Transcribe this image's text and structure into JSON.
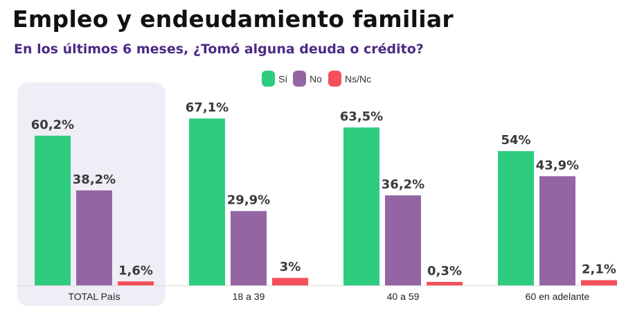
{
  "header": {
    "title": "Empleo y endeudamiento familiar",
    "subtitle": "En los últimos 6 meses, ¿Tomó alguna deuda o crédito?"
  },
  "chart_data": {
    "type": "bar",
    "title": "Empleo y endeudamiento familiar",
    "subtitle": "En los últimos 6 meses, ¿Tomó alguna deuda o crédito?",
    "categories": [
      "TOTAL País",
      "18 a 39",
      "40 a 59",
      "60 en adelante"
    ],
    "series": [
      {
        "name": "Sí",
        "color": "#2ecc7e",
        "values": [
          60.2,
          67.1,
          63.5,
          54
        ],
        "labels": [
          "60,2%",
          "67,1%",
          "63,5%",
          "54%"
        ]
      },
      {
        "name": "No",
        "color": "#9366a3",
        "values": [
          38.2,
          29.9,
          36.2,
          43.9
        ],
        "labels": [
          "38,2%",
          "29,9%",
          "36,2%",
          "43,9%"
        ]
      },
      {
        "name": "Ns/Nc",
        "color": "#f4505a",
        "values": [
          1.6,
          3,
          0.3,
          2.1
        ],
        "labels": [
          "1,6%",
          "3%",
          "0,3%",
          "2,1%"
        ]
      }
    ],
    "legend_position": "top-center",
    "highlighted_category": "TOTAL País",
    "highlight_color": "#f1edf6",
    "grid": false,
    "ylim": [
      0,
      70
    ]
  }
}
